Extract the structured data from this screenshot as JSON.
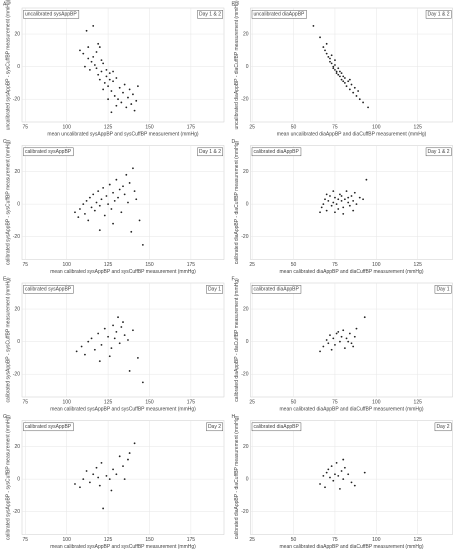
{
  "chart_data": [
    {
      "type": "scatter",
      "panel": "A",
      "label_left": "uncalibrated sysAppBP",
      "label_right": "Day 1 & 2",
      "xlabel": "mean uncalibrated sysAppBP and sysCuffBP measurement (mmHg)",
      "ylabel": "uncalibrated sysAppBP - sysCuffBP measurement (mmHg)",
      "xlim": [
        73,
        195
      ],
      "ylim": [
        -34,
        36
      ],
      "xticks": [
        75,
        100,
        125,
        150,
        175
      ],
      "yticks": [
        -20,
        0,
        20
      ],
      "grid": true,
      "color": "#222222",
      "x": [
        112,
        116,
        120,
        108,
        110,
        113,
        115,
        118,
        111,
        114,
        117,
        119,
        121,
        122,
        120,
        123,
        124,
        125,
        126,
        127,
        128,
        129,
        130,
        131,
        132,
        133,
        134,
        135,
        136,
        137,
        138,
        139,
        140,
        141,
        142,
        143,
        118,
        116,
        121,
        124,
        126,
        128,
        119,
        113,
        122,
        130,
        125,
        127
      ],
      "values": [
        22,
        25,
        12,
        10,
        8,
        5,
        3,
        9,
        0,
        -2,
        1,
        -5,
        -3,
        2,
        -8,
        -10,
        -6,
        -12,
        -4,
        -15,
        -9,
        -18,
        -7,
        -20,
        -13,
        -22,
        -16,
        -11,
        -25,
        -19,
        -14,
        -23,
        -17,
        -27,
        -21,
        -12,
        -1,
        6,
        4,
        -2,
        -8,
        -3,
        14,
        12,
        -14,
        -24,
        -20,
        -28
      ]
    },
    {
      "type": "scatter",
      "panel": "B",
      "label_left": "uncalibrated diaAppBP",
      "label_right": "Day 1 & 2",
      "xlabel": "mean uncalibrated diaAppBP and diaCuffBP measurement (mmHg)",
      "ylabel": "uncalibrated diaAppBP - diaCuffBP measurement (mmHg)",
      "xlim": [
        24,
        146
      ],
      "ylim": [
        -34,
        36
      ],
      "xticks": [
        25,
        50,
        75,
        100,
        125
      ],
      "yticks": [
        -20,
        0,
        20
      ],
      "grid": true,
      "color": "#222222",
      "x": [
        62,
        66,
        68,
        69,
        70,
        71,
        72,
        72,
        73,
        74,
        74,
        75,
        75,
        76,
        76,
        77,
        78,
        78,
        79,
        80,
        80,
        81,
        82,
        83,
        84,
        85,
        86,
        87,
        88,
        90,
        92,
        95,
        70,
        73,
        75,
        77,
        79,
        81,
        84,
        89
      ],
      "values": [
        25,
        18,
        12,
        10,
        8,
        6,
        5,
        3,
        2,
        0,
        -1,
        -2,
        1,
        -3,
        -4,
        -5,
        -6,
        -3,
        -8,
        -9,
        -6,
        -10,
        -12,
        -9,
        -14,
        -11,
        -16,
        -13,
        -18,
        -20,
        -22,
        -25,
        14,
        7,
        4,
        -1,
        -4,
        -7,
        -8,
        -15
      ]
    },
    {
      "type": "scatter",
      "panel": "C",
      "label_left": "calibrated sysAppBP",
      "label_right": "Day 1 & 2",
      "xlabel": "mean calibrated sysAppBP and sysCuffBP measurement (mmHg)",
      "ylabel": "calibrated sysAppBP - sysCuffBP measurement (mmHg)",
      "xlim": [
        73,
        195
      ],
      "ylim": [
        -34,
        36
      ],
      "xticks": [
        75,
        100,
        125,
        150,
        175
      ],
      "yticks": [
        -20,
        0,
        20
      ],
      "grid": true,
      "color": "#222222",
      "x": [
        105,
        107,
        108,
        110,
        111,
        112,
        113,
        114,
        115,
        116,
        117,
        118,
        119,
        120,
        121,
        122,
        123,
        124,
        125,
        126,
        127,
        128,
        129,
        130,
        131,
        132,
        133,
        134,
        135,
        136,
        137,
        138,
        139,
        140,
        141,
        142,
        144,
        146,
        120,
        128
      ],
      "values": [
        -5,
        -8,
        -3,
        0,
        -6,
        2,
        -10,
        4,
        -2,
        6,
        -4,
        1,
        8,
        -1,
        3,
        10,
        -7,
        5,
        0,
        12,
        -3,
        7,
        2,
        15,
        4,
        9,
        -5,
        11,
        6,
        18,
        1,
        13,
        -17,
        22,
        8,
        3,
        -10,
        -25,
        -16,
        -12
      ]
    },
    {
      "type": "scatter",
      "panel": "D",
      "label_left": "calibrated diaAppBP",
      "label_right": "Day 1 & 2",
      "xlabel": "mean calibrated diaAppBP and diaCuffBP measurement (mmHg)",
      "ylabel": "calibrated diaAppBP - diaCuffBP measurement (mmHg)",
      "xlim": [
        24,
        146
      ],
      "ylim": [
        -34,
        36
      ],
      "xticks": [
        25,
        50,
        75,
        100,
        125
      ],
      "yticks": [
        -20,
        0,
        20
      ],
      "grid": true,
      "color": "#222222",
      "x": [
        66,
        67,
        68,
        69,
        70,
        71,
        72,
        73,
        74,
        75,
        76,
        77,
        78,
        79,
        80,
        81,
        82,
        83,
        84,
        85,
        86,
        87,
        88,
        90,
        92,
        94,
        70,
        74,
        77,
        80,
        83,
        86,
        75,
        79
      ],
      "values": [
        -5,
        -2,
        0,
        3,
        -4,
        2,
        5,
        -1,
        1,
        4,
        0,
        -3,
        6,
        2,
        -2,
        3,
        8,
        1,
        -1,
        5,
        2,
        7,
        0,
        4,
        3,
        15,
        6,
        8,
        3,
        -6,
        4,
        -4,
        -5,
        5
      ]
    },
    {
      "type": "scatter",
      "panel": "E",
      "label_left": "calibrated sysAppBP",
      "label_right": "Day 1",
      "xlabel": "mean calibrated sysAppBP and sysCuffBP measurement (mmHg)",
      "ylabel": "calibrated sysAppBP - sysCuffBP measurement (mmHg)",
      "xlim": [
        73,
        195
      ],
      "ylim": [
        -34,
        36
      ],
      "xticks": [
        75,
        100,
        125,
        150,
        175
      ],
      "yticks": [
        -20,
        0,
        20
      ],
      "grid": true,
      "color": "#222222",
      "x": [
        106,
        109,
        111,
        113,
        115,
        117,
        119,
        121,
        123,
        125,
        127,
        128,
        130,
        131,
        132,
        134,
        135,
        137,
        138,
        140,
        143,
        146,
        120,
        126,
        129,
        133
      ],
      "values": [
        -6,
        -3,
        -8,
        0,
        2,
        -5,
        5,
        -2,
        8,
        3,
        -4,
        10,
        6,
        15,
        -1,
        12,
        4,
        1,
        -18,
        7,
        -10,
        -25,
        -12,
        -9,
        2,
        9
      ]
    },
    {
      "type": "scatter",
      "panel": "F",
      "label_left": "calibrated diaAppBP",
      "label_right": "Day 1",
      "xlabel": "mean calibrated diaAppBP and diaCuffBP measurement (mmHg)",
      "ylabel": "calibrated diaAppBP - diaCuffBP measurement (mmHg)",
      "xlim": [
        24,
        146
      ],
      "ylim": [
        -34,
        36
      ],
      "xticks": [
        25,
        50,
        75,
        100,
        125
      ],
      "yticks": [
        -20,
        0,
        20
      ],
      "grid": true,
      "color": "#222222",
      "x": [
        66,
        68,
        70,
        71,
        72,
        74,
        75,
        76,
        78,
        79,
        80,
        81,
        82,
        84,
        85,
        87,
        88,
        93,
        73,
        77,
        83,
        86
      ],
      "values": [
        -6,
        -3,
        1,
        -1,
        4,
        2,
        -2,
        5,
        0,
        3,
        7,
        -4,
        2,
        5,
        -1,
        3,
        8,
        15,
        -5,
        6,
        0,
        -3
      ]
    },
    {
      "type": "scatter",
      "panel": "G",
      "label_left": "calibrated sysAppBP",
      "label_right": "Day 2",
      "xlabel": "mean calibrated sysAppBP and sysCuffBP measurement (mmHg)",
      "ylabel": "calibrated sysAppBP - sysCuffBP measurement (mmHg)",
      "xlim": [
        73,
        195
      ],
      "ylim": [
        -34,
        36
      ],
      "xticks": [
        75,
        100,
        125,
        150,
        175
      ],
      "yticks": [
        -20,
        0,
        20
      ],
      "grid": true,
      "color": "#222222",
      "x": [
        105,
        108,
        110,
        112,
        114,
        116,
        118,
        120,
        121,
        122,
        124,
        126,
        128,
        130,
        132,
        134,
        135,
        137,
        138,
        141,
        119,
        127
      ],
      "values": [
        -3,
        -5,
        0,
        5,
        -2,
        3,
        7,
        -4,
        10,
        -18,
        2,
        0,
        6,
        3,
        14,
        8,
        0,
        12,
        16,
        22,
        1,
        -7
      ]
    },
    {
      "type": "scatter",
      "panel": "H",
      "label_left": "calibrated diaAppBP",
      "label_right": "Day 2",
      "xlabel": "mean calibrated diaAppBP and diaCuffBP measurement (mmHg)",
      "ylabel": "calibrated diaAppBP - diaCuffBP measurement (mmHg)",
      "xlim": [
        24,
        146
      ],
      "ylim": [
        -34,
        36
      ],
      "xticks": [
        25,
        50,
        75,
        100,
        125
      ],
      "yticks": [
        -20,
        0,
        20
      ],
      "grid": true,
      "color": "#222222",
      "x": [
        66,
        68,
        69,
        70,
        72,
        73,
        74,
        75,
        76,
        77,
        78,
        79,
        80,
        81,
        83,
        85,
        87,
        93,
        71,
        80
      ],
      "values": [
        -3,
        2,
        -5,
        4,
        1,
        8,
        -1,
        3,
        10,
        2,
        -6,
        5,
        0,
        7,
        3,
        -2,
        -4,
        4,
        6,
        12
      ]
    }
  ]
}
